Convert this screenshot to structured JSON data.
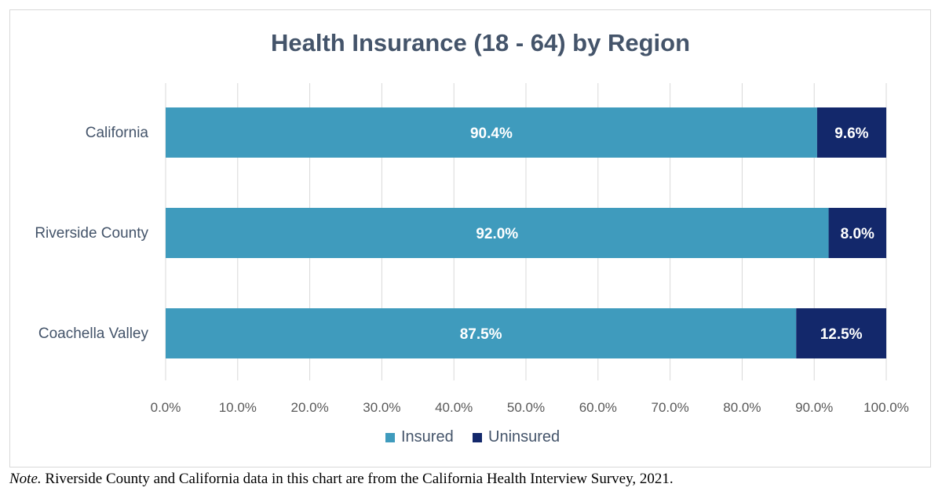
{
  "chart_data": {
    "type": "bar",
    "orientation": "horizontal",
    "stacked": true,
    "title": "Health Insurance (18 - 64) by Region",
    "categories": [
      "California",
      "Riverside County",
      "Coachella Valley"
    ],
    "series": [
      {
        "name": "Insured",
        "values": [
          90.4,
          92.0,
          87.5
        ],
        "labels": [
          "90.4%",
          "92.0%",
          "87.5%"
        ],
        "color": "#3f9bbd"
      },
      {
        "name": "Uninsured",
        "values": [
          9.6,
          8.0,
          12.5
        ],
        "labels": [
          "9.6%",
          "8.0%",
          "12.5%"
        ],
        "color": "#13286b"
      }
    ],
    "x_ticks": [
      "0.0%",
      "10.0%",
      "20.0%",
      "30.0%",
      "40.0%",
      "50.0%",
      "60.0%",
      "70.0%",
      "80.0%",
      "90.0%",
      "100.0%"
    ],
    "xlim": [
      0,
      100
    ],
    "grid": true,
    "legend_position": "bottom"
  },
  "note": {
    "prefix": "Note.",
    "text": " Riverside County and California data in this chart are from the California Health Interview Survey, 2021."
  }
}
